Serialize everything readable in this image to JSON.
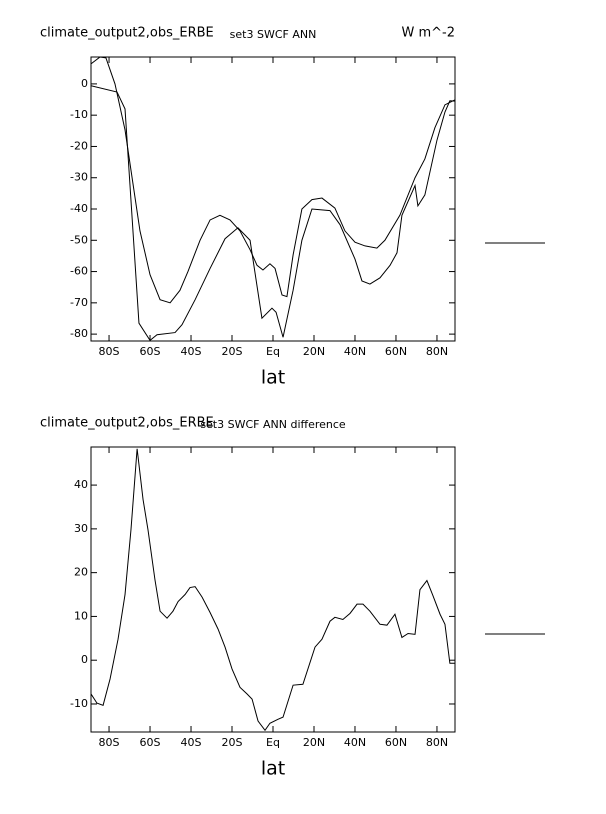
{
  "chart_data": [
    {
      "type": "line",
      "title": "climate_output2,obs_ERBE",
      "subtitle": "set3 SWCF ANN",
      "units": "W m^-2",
      "xlabel": "lat",
      "xlim": [
        -88.8,
        88.8
      ],
      "ylim": [
        -82.2,
        8.6
      ],
      "xticks": [
        {
          "value": -80,
          "label": "80S"
        },
        {
          "value": -60,
          "label": "60S"
        },
        {
          "value": -40,
          "label": "40S"
        },
        {
          "value": -20,
          "label": "20S"
        },
        {
          "value": 0,
          "label": "Eq"
        },
        {
          "value": 20,
          "label": "20N"
        },
        {
          "value": 40,
          "label": "40N"
        },
        {
          "value": 60,
          "label": "60N"
        },
        {
          "value": 80,
          "label": "80N"
        }
      ],
      "yticks": [
        0,
        -10,
        -20,
        -30,
        -40,
        -50,
        -60,
        -70,
        -80
      ],
      "series": [
        {
          "color": "#000000",
          "x": [
            -88.8,
            -76.1,
            -72.2,
            -65.4,
            -60,
            -56.6,
            -47.8,
            -44.4,
            -38,
            -30.7,
            -23.4,
            -17.1,
            -11.2,
            -5.4,
            -0.5,
            1.5,
            4.9,
            9.8,
            14.1,
            19,
            27.8,
            32.7,
            40,
            43.4,
            47.3,
            52.2,
            57.1,
            60.5,
            62.9,
            69.3,
            70.7,
            74.1,
            80,
            83.9,
            86.3,
            88.8
          ],
          "values": [
            -0.6,
            -2.6,
            -8,
            -76.5,
            -82,
            -80.2,
            -79.5,
            -77,
            -69,
            -59,
            -49.5,
            -46,
            -50,
            -74.9,
            -71.7,
            -73,
            -81,
            -66,
            -50,
            -40,
            -40.5,
            -45,
            -56,
            -63,
            -64,
            -62,
            -58,
            -54,
            -42,
            -32.5,
            -39,
            -35.5,
            -18,
            -9,
            -5.4,
            -5.5
          ]
        },
        {
          "color": "#000000",
          "x": [
            -88.8,
            -84.4,
            -81.5,
            -77.1,
            -72.2,
            -68.3,
            -64.9,
            -60,
            -55.1,
            -50.2,
            -45.4,
            -41.5,
            -35.6,
            -30.7,
            -25.9,
            -21,
            -16.1,
            -11.2,
            -7.8,
            -4.9,
            -1.5,
            1,
            4.4,
            6.8,
            9.8,
            14.1,
            19,
            23.9,
            30.2,
            35.1,
            40,
            44.9,
            50.7,
            54.6,
            61.9,
            69.3,
            74.1,
            79,
            83.9,
            88.8
          ],
          "values": [
            6.4,
            8.6,
            8.3,
            0,
            -14.7,
            -32,
            -47,
            -61,
            -69,
            -70,
            -66,
            -60,
            -50,
            -43.5,
            -42,
            -43.5,
            -47,
            -53,
            -58,
            -59.5,
            -57.5,
            -59,
            -67.5,
            -68,
            -54.7,
            -40,
            -37,
            -36.5,
            -39.7,
            -47,
            -50.6,
            -51.8,
            -52.5,
            -50,
            -42,
            -30,
            -24,
            -14,
            -6.7,
            -5.1
          ]
        }
      ]
    },
    {
      "type": "line",
      "title": "climate_output2,obs_ERBE",
      "subtitle": "set3 SWCF ANN difference",
      "xlabel": "lat",
      "xlim": [
        -88.8,
        88.8
      ],
      "ylim": [
        -16.4,
        48.7
      ],
      "xticks": [
        {
          "value": -80,
          "label": "80S"
        },
        {
          "value": -60,
          "label": "60S"
        },
        {
          "value": -40,
          "label": "40S"
        },
        {
          "value": -20,
          "label": "20S"
        },
        {
          "value": 0,
          "label": "Eq"
        },
        {
          "value": 20,
          "label": "20N"
        },
        {
          "value": 40,
          "label": "40N"
        },
        {
          "value": 60,
          "label": "60N"
        },
        {
          "value": 80,
          "label": "80N"
        }
      ],
      "yticks": [
        40,
        30,
        20,
        10,
        0,
        -10
      ],
      "series": [
        {
          "color": "#000000",
          "x": [
            -88.8,
            -85.9,
            -82.9,
            -79.5,
            -75.6,
            -72.2,
            -69.3,
            -66.3,
            -63.4,
            -61,
            -57.6,
            -55.1,
            -51.7,
            -48.8,
            -46.3,
            -42.9,
            -40.5,
            -38,
            -34.6,
            -30.7,
            -26.8,
            -23.4,
            -20,
            -16.1,
            -12.7,
            -10.2,
            -7.3,
            -3.9,
            -1.5,
            2.4,
            4.9,
            9.8,
            14.6,
            20.5,
            23.9,
            27.8,
            30.2,
            34.1,
            37.6,
            41,
            43.9,
            47.3,
            52.2,
            55.6,
            59.5,
            62.9,
            65.9,
            69.3,
            71.7,
            75.1,
            78,
            81.5,
            83.9,
            86.3,
            88.8
          ],
          "values": [
            -7.7,
            -9.8,
            -10.3,
            -4.3,
            4.8,
            15,
            29.8,
            48.3,
            36.7,
            29.8,
            18.4,
            11.2,
            9.6,
            11.2,
            13.4,
            15,
            16.6,
            16.8,
            14.4,
            10.9,
            7.1,
            3,
            -2,
            -6.2,
            -7.7,
            -8.9,
            -13.9,
            -16,
            -14.4,
            -13.5,
            -13,
            -5.7,
            -5.5,
            3,
            4.8,
            8.9,
            9.8,
            9.3,
            10.7,
            12.8,
            12.8,
            11.2,
            8.2,
            8,
            10.5,
            5.2,
            6.1,
            5.9,
            16.1,
            18.2,
            14.8,
            10.5,
            8.2,
            -0.7,
            -0.7
          ]
        }
      ]
    }
  ]
}
